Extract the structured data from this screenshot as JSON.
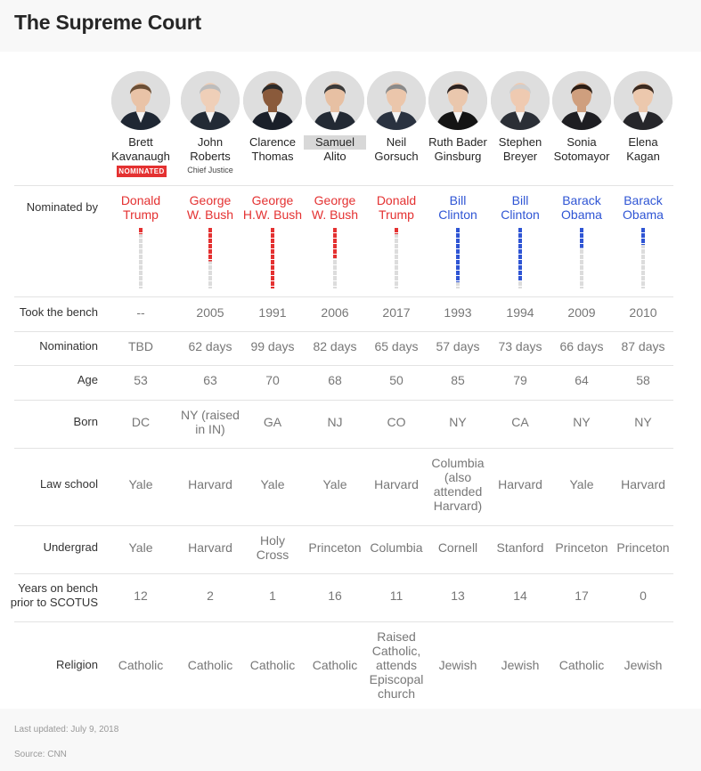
{
  "title": "The Supreme Court",
  "colors": {
    "republican": "#e43131",
    "democrat": "#2f55d4",
    "inactive_segment": "#dcdcdc"
  },
  "badge": "NOMINATED",
  "justices": [
    {
      "first": "Brett",
      "last": "Kavanaugh",
      "nominated_by": [
        "Donald",
        "Trump"
      ],
      "party": "republican",
      "years_bar_filled_fraction": 0.1,
      "took_bench": "--",
      "nomination": "TBD",
      "age": "53",
      "born": [
        "DC"
      ],
      "law_school": [
        "Yale"
      ],
      "undergrad": [
        "Yale"
      ],
      "years_prior": "12",
      "religion": [
        "Catholic"
      ]
    },
    {
      "first": "John",
      "last": "Roberts",
      "subtitle": "Chief Justice",
      "nominated_by": [
        "George",
        "W. Bush"
      ],
      "party": "republican",
      "years_bar_filled_fraction": 0.55,
      "took_bench": "2005",
      "nomination": "62 days",
      "age": "63",
      "born": [
        "NY (raised",
        "in IN)"
      ],
      "law_school": [
        "Harvard"
      ],
      "undergrad": [
        "Harvard"
      ],
      "years_prior": "2",
      "religion": [
        "Catholic"
      ]
    },
    {
      "first": "Clarence",
      "last": "Thomas",
      "nominated_by": [
        "George",
        "H.W. Bush"
      ],
      "party": "republican",
      "years_bar_filled_fraction": 1.0,
      "took_bench": "1991",
      "nomination": "99 days",
      "age": "70",
      "born": [
        "GA"
      ],
      "law_school": [
        "Yale"
      ],
      "undergrad": [
        "Holy",
        "Cross"
      ],
      "years_prior": "1",
      "religion": [
        "Catholic"
      ]
    },
    {
      "first": "Samuel",
      "last": "Alito",
      "nominated_by": [
        "George",
        "W. Bush"
      ],
      "party": "republican",
      "years_bar_filled_fraction": 0.5,
      "took_bench": "2006",
      "nomination": "82 days",
      "age": "68",
      "born": [
        "NJ"
      ],
      "law_school": [
        "Yale"
      ],
      "undergrad": [
        "Princeton"
      ],
      "years_prior": "16",
      "religion": [
        "Catholic"
      ]
    },
    {
      "first": "Neil",
      "last": "Gorsuch",
      "nominated_by": [
        "Donald",
        "Trump"
      ],
      "party": "republican",
      "years_bar_filled_fraction": 0.1,
      "took_bench": "2017",
      "nomination": "65 days",
      "age": "50",
      "born": [
        "CO"
      ],
      "law_school": [
        "Harvard"
      ],
      "undergrad": [
        "Columbia"
      ],
      "years_prior": "11",
      "religion": [
        "Raised",
        "Catholic,",
        "attends",
        "Episcopal",
        "church"
      ]
    },
    {
      "first": "Ruth Bader",
      "last": "Ginsburg",
      "nominated_by": [
        "Bill",
        "Clinton"
      ],
      "party": "democrat",
      "years_bar_filled_fraction": 0.9,
      "took_bench": "1993",
      "nomination": "57 days",
      "age": "85",
      "born": [
        "NY"
      ],
      "law_school": [
        "Columbia",
        "(also",
        "attended",
        "Harvard)"
      ],
      "undergrad": [
        "Cornell"
      ],
      "years_prior": "13",
      "religion": [
        "Jewish"
      ]
    },
    {
      "first": "Stephen",
      "last": "Breyer",
      "nominated_by": [
        "Bill",
        "Clinton"
      ],
      "party": "democrat",
      "years_bar_filled_fraction": 0.87,
      "took_bench": "1994",
      "nomination": "73 days",
      "age": "79",
      "born": [
        "CA"
      ],
      "law_school": [
        "Harvard"
      ],
      "undergrad": [
        "Stanford"
      ],
      "years_prior": "14",
      "religion": [
        "Jewish"
      ]
    },
    {
      "first": "Sonia",
      "last": "Sotomayor",
      "nominated_by": [
        "Barack",
        "Obama"
      ],
      "party": "democrat",
      "years_bar_filled_fraction": 0.33,
      "took_bench": "2009",
      "nomination": "66 days",
      "age": "64",
      "born": [
        "NY"
      ],
      "law_school": [
        "Yale"
      ],
      "undergrad": [
        "Princeton"
      ],
      "years_prior": "17",
      "religion": [
        "Catholic"
      ]
    },
    {
      "first": "Elena",
      "last": "Kagan",
      "nominated_by": [
        "Barack",
        "Obama"
      ],
      "party": "democrat",
      "years_bar_filled_fraction": 0.28,
      "took_bench": "2010",
      "nomination": "87 days",
      "age": "58",
      "born": [
        "NY"
      ],
      "law_school": [
        "Harvard"
      ],
      "undergrad": [
        "Princeton"
      ],
      "years_prior": "0",
      "religion": [
        "Jewish"
      ]
    }
  ],
  "row_labels": {
    "nominated_by": "Nominated by",
    "took_bench": "Took the bench",
    "nomination": "Nomination",
    "age": "Age",
    "born": "Born",
    "law_school": "Law school",
    "undergrad": "Undergrad",
    "years_prior": [
      "Years on bench",
      "prior to SCOTUS"
    ],
    "religion": "Religion"
  },
  "footer": {
    "updated": "Last updated: July 9, 2018",
    "source": "Source: CNN"
  }
}
